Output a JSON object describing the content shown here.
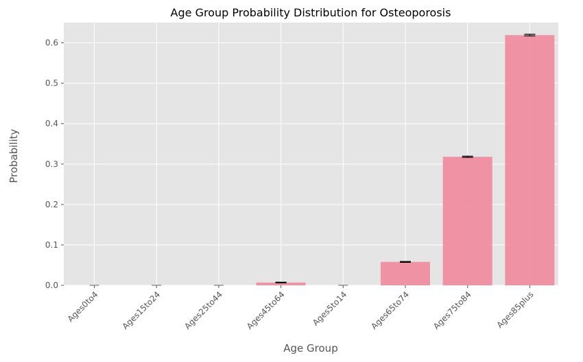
{
  "chart_data": {
    "type": "bar",
    "title": "Age Group Probability Distribution for Osteoporosis",
    "xlabel": "Age Group",
    "ylabel": "Probability",
    "categories": [
      "Ages0to4",
      "Ages15to24",
      "Ages25to44",
      "Ages45to64",
      "Ages5to14",
      "Ages65to74",
      "Ages75to84",
      "Ages85plus"
    ],
    "values": [
      0.0,
      0.0,
      0.0,
      0.007,
      0.0,
      0.058,
      0.318,
      0.619
    ],
    "error": [
      0.0005,
      0.0005,
      0.0005,
      0.0008,
      0.0005,
      0.001,
      0.0015,
      0.002
    ],
    "ylim": [
      0,
      0.65
    ],
    "yticks": [
      "0.0",
      "0.1",
      "0.2",
      "0.3",
      "0.4",
      "0.5",
      "0.6"
    ],
    "ytick_values": [
      0,
      0.1,
      0.2,
      0.3,
      0.4,
      0.5,
      0.6
    ],
    "grid": true,
    "colors": {
      "bar": "#f0889b",
      "background": "#e5e5e5",
      "grid": "#ffffff",
      "error": "#000000"
    }
  }
}
